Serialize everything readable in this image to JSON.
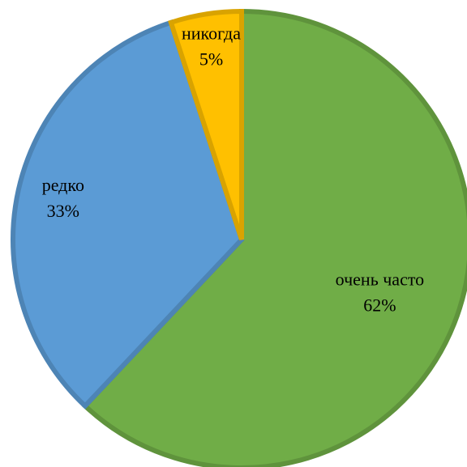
{
  "chart_data": {
    "type": "pie",
    "categories": [
      "очень часто",
      "редко",
      "никогда"
    ],
    "values": [
      62,
      33,
      5
    ],
    "value_labels": [
      "62%",
      "33%",
      "5%"
    ],
    "colors": [
      "#70ad47",
      "#5b9bd5",
      "#ffc000"
    ]
  }
}
